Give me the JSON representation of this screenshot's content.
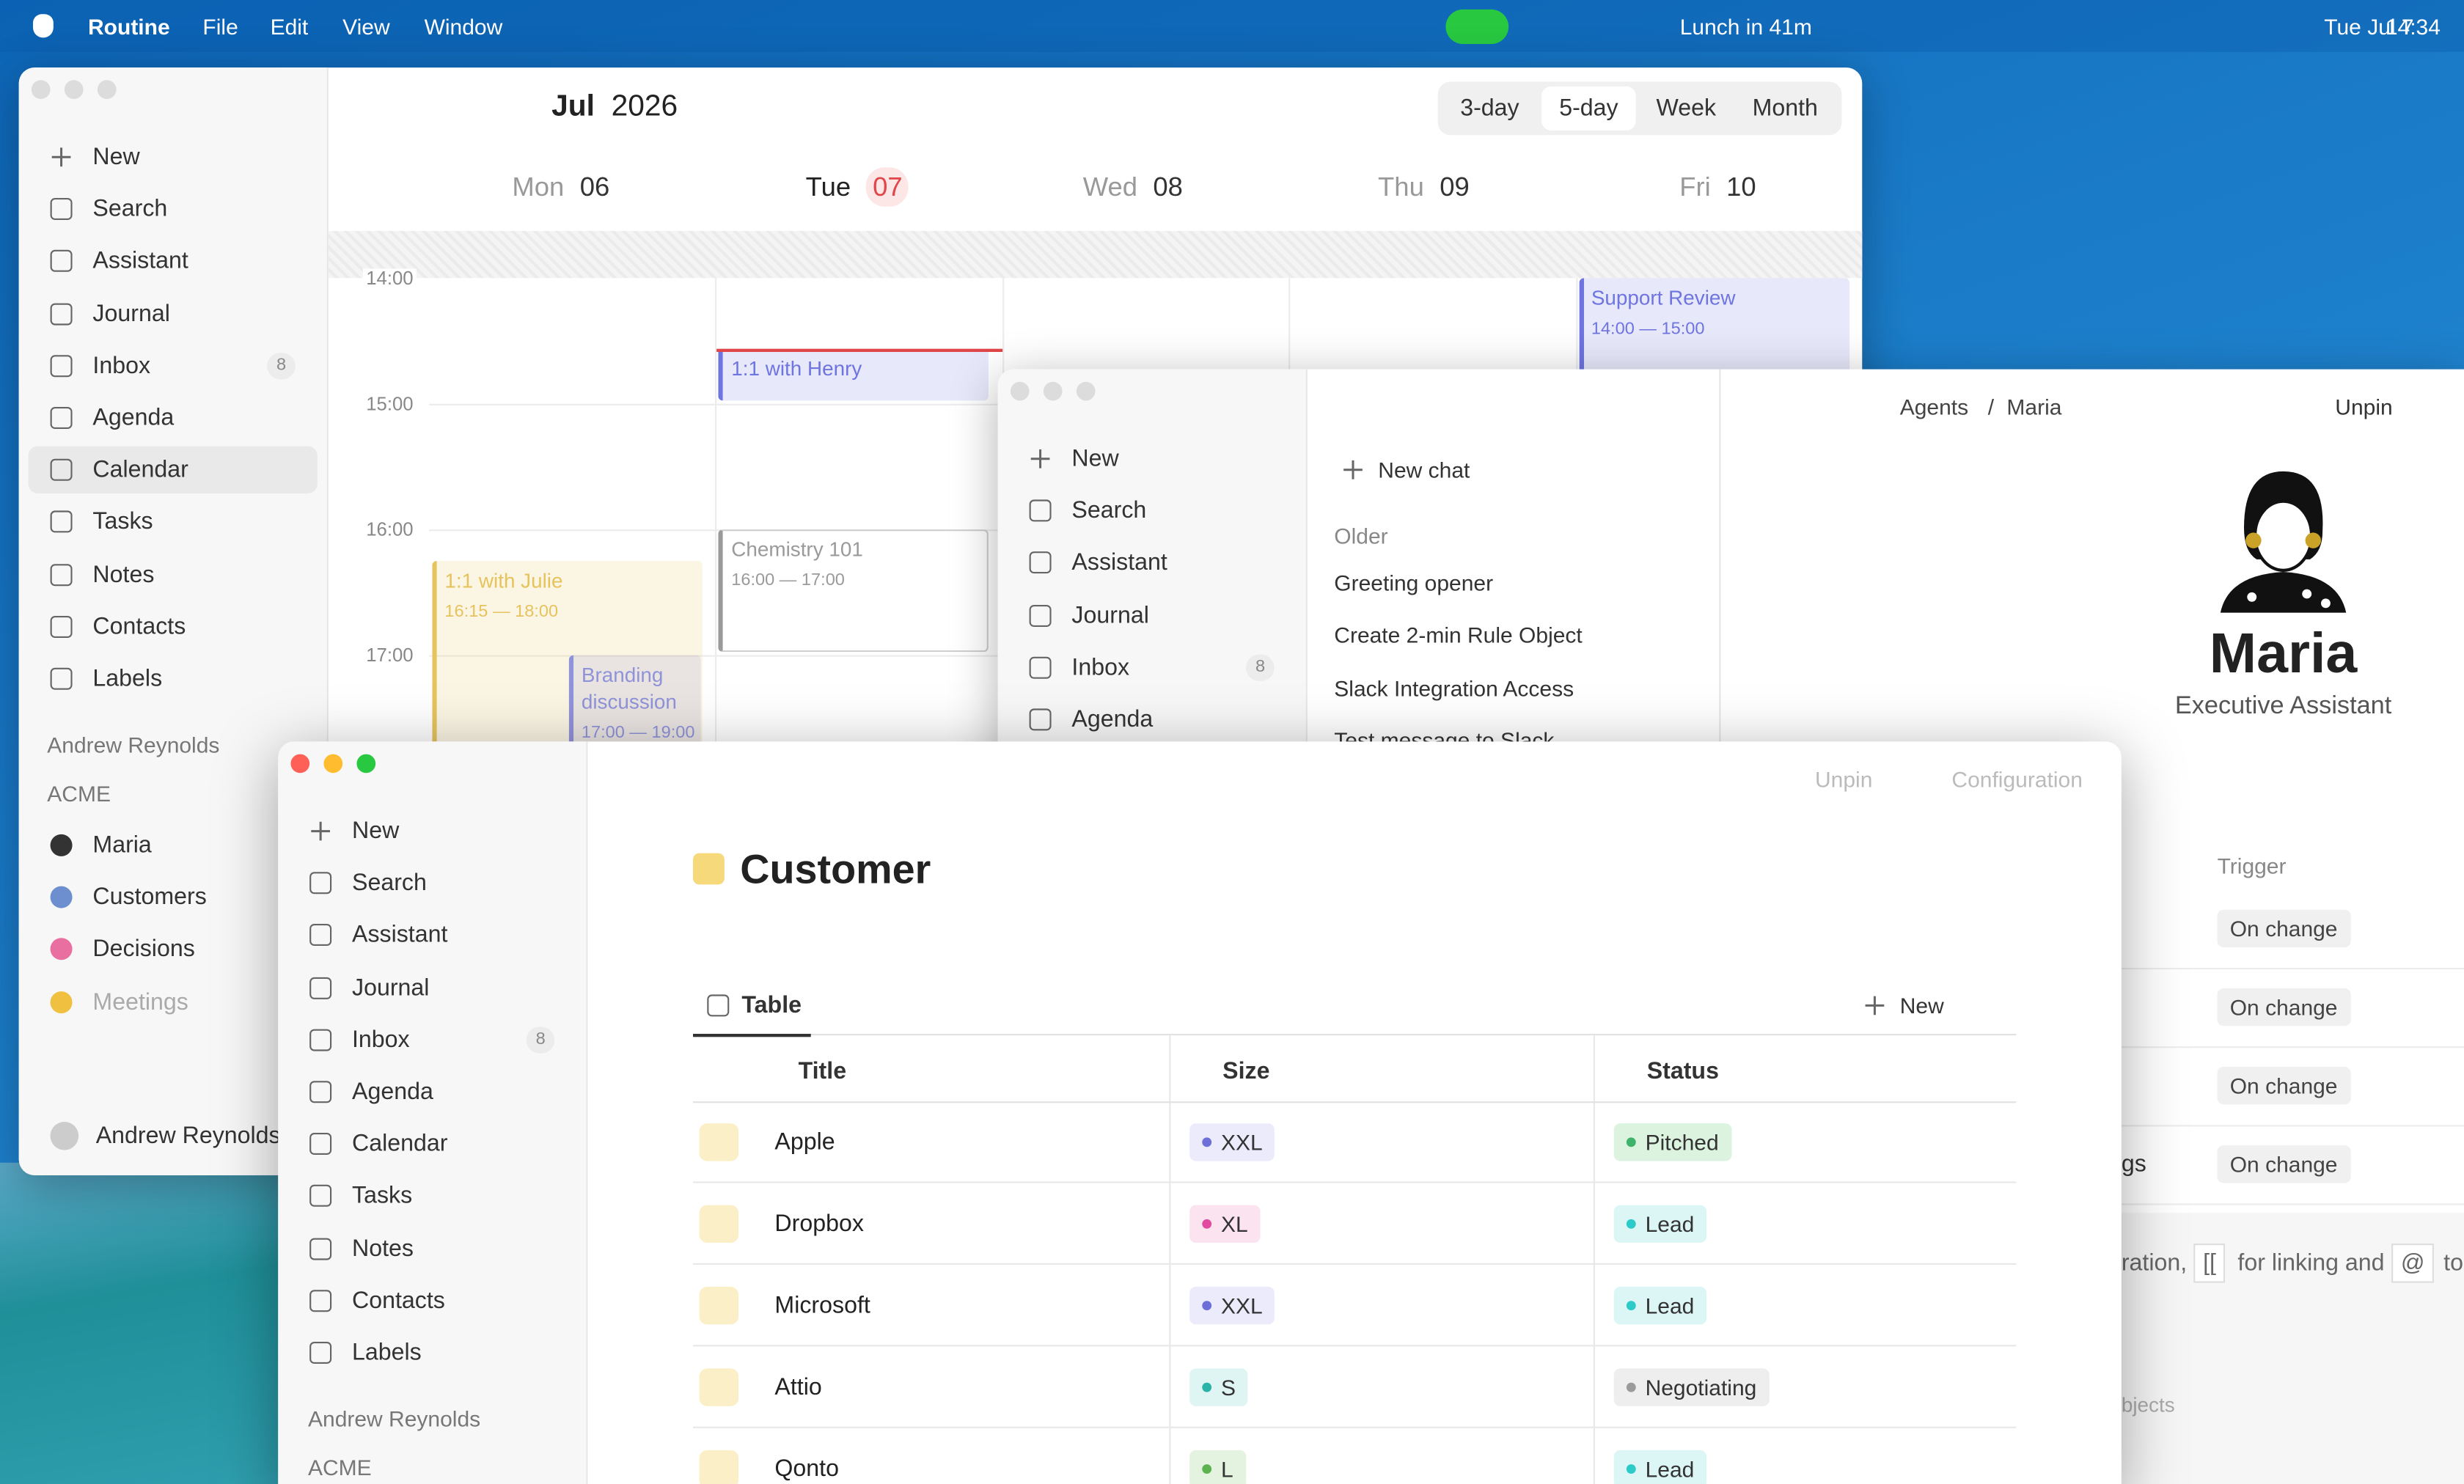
{
  "menubar": {
    "app": "Routine",
    "menus": [
      "File",
      "Edit",
      "View",
      "Window"
    ],
    "status": "Lunch in 41m",
    "date": "Tue Jul 7",
    "time": "14:34"
  },
  "sidebar": {
    "items": [
      {
        "label": "New"
      },
      {
        "label": "Search"
      },
      {
        "label": "Assistant"
      },
      {
        "label": "Journal"
      },
      {
        "label": "Inbox",
        "badge": 8
      },
      {
        "label": "Agenda"
      },
      {
        "label": "Calendar"
      },
      {
        "label": "Tasks"
      },
      {
        "label": "Notes"
      },
      {
        "label": "Contacts"
      },
      {
        "label": "Labels"
      }
    ],
    "active": "Calendar",
    "owner": "Andrew Reynolds",
    "workspace": "ACME",
    "pages": [
      "Maria",
      "Customers",
      "Decisions",
      "Meetings"
    ],
    "account": "Andrew Reynolds"
  },
  "calendar": {
    "month": "Jul",
    "year": "2026",
    "views": [
      "3-day",
      "5-day",
      "Week",
      "Month"
    ],
    "active_view": "5-day",
    "days": [
      {
        "weekday": "Mon",
        "date": "06",
        "events": [
          {
            "title": "1:1 with Julie",
            "time": "16:15 — 18:00",
            "color": "#e6c35c"
          },
          {
            "title": "Branding discussion",
            "time": "17:00 — 19:00",
            "color": "#8f93d8"
          }
        ]
      },
      {
        "weekday": "Tue",
        "date": "07",
        "today": true,
        "events": [
          {
            "title": "1:1 with Henry",
            "color": "#6e74e0"
          },
          {
            "title": "Chemistry 101",
            "time": "16:00 — 17:00",
            "color": "#9a9a9a"
          }
        ]
      },
      {
        "weekday": "Wed",
        "date": "08",
        "events": []
      },
      {
        "weekday": "Thu",
        "date": "09",
        "events": []
      },
      {
        "weekday": "Fri",
        "date": "10",
        "events": [
          {
            "title": "Support Review",
            "time": "14:00 — 15:00",
            "color": "#6e74e0"
          }
        ]
      }
    ],
    "hours": [
      "14:00",
      "15:00",
      "16:00",
      "17:00"
    ]
  },
  "agent": {
    "new_chat": "New chat",
    "group": "Older",
    "chats": [
      "Greeting opener",
      "Create 2-min Rule Object",
      "Slack Integration Access",
      "Test message to Slack"
    ],
    "breadcrumb": [
      "Agents",
      "/",
      "Maria"
    ],
    "unpin": "Unpin",
    "name": "Maria",
    "role": "Executive Assistant",
    "trigger_header": "Trigger",
    "triggers": [
      "On change",
      "On change",
      "On change",
      "On change"
    ],
    "row_fragment": "gs",
    "hint": [
      "ration,",
      "[[",
      "for linking and",
      "@",
      "to"
    ],
    "footer": "bjects"
  },
  "customer": {
    "unpin": "Unpin",
    "configuration": "Configuration",
    "title": "Customer",
    "tab": "Table",
    "new": "New",
    "columns": [
      "Title",
      "Size",
      "Status"
    ],
    "rows": [
      {
        "title": "Apple",
        "size": "XXL",
        "size_color": "#6d6fd8",
        "size_bg": "#ecebfb",
        "status": "Pitched",
        "status_color": "#3fb36b",
        "status_bg": "#dcf3e0"
      },
      {
        "title": "Dropbox",
        "size": "XL",
        "size_color": "#e24aa0",
        "size_bg": "#fbe4f0",
        "status": "Lead",
        "status_color": "#2ccac8",
        "status_bg": "#dcf6f6"
      },
      {
        "title": "Microsoft",
        "size": "XXL",
        "size_color": "#6d6fd8",
        "size_bg": "#ecebfb",
        "status": "Lead",
        "status_color": "#2ccac8",
        "status_bg": "#dcf6f6"
      },
      {
        "title": "Attio",
        "size": "S",
        "size_color": "#2bb3a8",
        "size_bg": "#dff5f3",
        "status": "Negotiating",
        "status_color": "#9a9a9a",
        "status_bg": "#eeeeee"
      },
      {
        "title": "Qonto",
        "size": "L",
        "size_color": "#5cb350",
        "size_bg": "#e3f3df",
        "status": "Lead",
        "status_color": "#2ccac8",
        "status_bg": "#dcf6f6"
      }
    ]
  }
}
